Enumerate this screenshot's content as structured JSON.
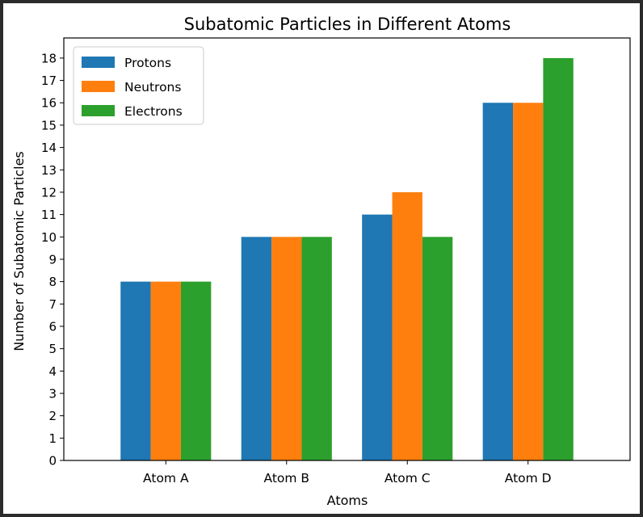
{
  "chart_data": {
    "type": "bar",
    "title": "Subatomic Particles in Different Atoms",
    "xlabel": "Atoms",
    "ylabel": "Number of Subatomic Particles",
    "categories": [
      "Atom A",
      "Atom B",
      "Atom C",
      "Atom D"
    ],
    "series": [
      {
        "name": "Protons",
        "values": [
          8,
          10,
          11,
          16
        ],
        "color": "#1f77b4"
      },
      {
        "name": "Neutrons",
        "values": [
          8,
          10,
          12,
          16
        ],
        "color": "#ff7f0e"
      },
      {
        "name": "Electrons",
        "values": [
          8,
          10,
          10,
          18
        ],
        "color": "#2ca02c"
      }
    ],
    "ylim": [
      0,
      18.9
    ],
    "yticks": [
      0,
      1,
      2,
      3,
      4,
      5,
      6,
      7,
      8,
      9,
      10,
      11,
      12,
      13,
      14,
      15,
      16,
      17,
      18
    ],
    "grid": false,
    "legend_position": "top-left"
  }
}
